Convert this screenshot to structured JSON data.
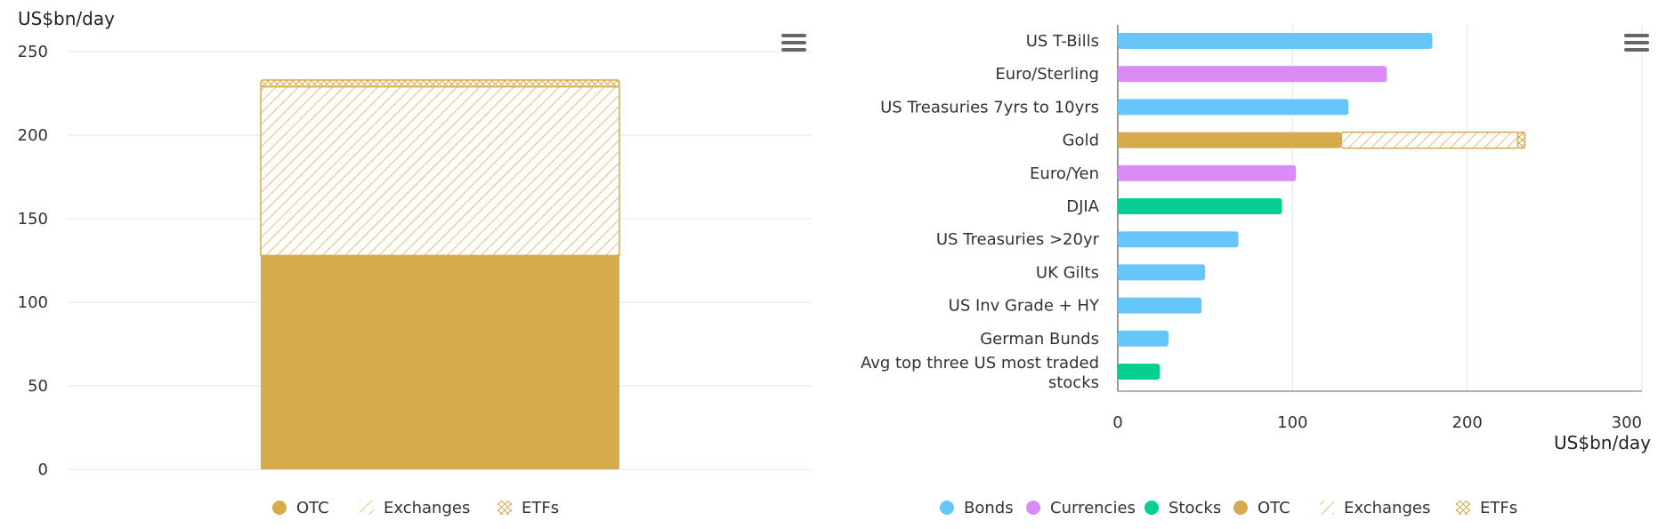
{
  "charts": [
    {
      "id": "left",
      "chart_data": {
        "type": "bar",
        "stacked": true,
        "orientation": "vertical",
        "categories": [
          ""
        ],
        "series": [
          {
            "name": "OTC",
            "values": [
              128
            ],
            "pattern": "solid"
          },
          {
            "name": "Exchanges",
            "values": [
              101
            ],
            "pattern": "hatch"
          },
          {
            "name": "ETFs",
            "values": [
              4
            ],
            "pattern": "crosshatch"
          }
        ],
        "ylabel": "US$bn/day",
        "ylim": [
          0,
          250
        ],
        "yticks": [
          0,
          50,
          100,
          150,
          200,
          250
        ],
        "grid": true,
        "legend": "bottom-center"
      },
      "legend": [
        {
          "label": "OTC",
          "swatch": "dot",
          "color": "#d6ab4d"
        },
        {
          "label": "Exchanges",
          "swatch": "hatch",
          "color": "#d6ab4d"
        },
        {
          "label": "ETFs",
          "swatch": "crosshatch",
          "color": "#d6ab4d"
        }
      ]
    },
    {
      "id": "right",
      "chart_data": {
        "type": "bar",
        "stacked": true,
        "orientation": "horizontal",
        "categories": [
          "US T-Bills",
          "Euro/Sterling",
          "US Treasuries 7yrs to 10yrs",
          "Gold",
          "Euro/Yen",
          "DJIA",
          "US Treasuries >20yr",
          "UK Gilts",
          "US Inv Grade + HY",
          "German Bunds",
          "Avg top three US most traded stocks"
        ],
        "series": [
          {
            "name": "Bonds",
            "values": [
              180,
              0,
              132,
              0,
              0,
              0,
              69,
              50,
              48,
              29,
              0
            ],
            "color": "#66c6fa"
          },
          {
            "name": "Currencies",
            "values": [
              0,
              154,
              0,
              0,
              102,
              0,
              0,
              0,
              0,
              0,
              0
            ],
            "color": "#d98bf6"
          },
          {
            "name": "Stocks",
            "values": [
              0,
              0,
              0,
              0,
              0,
              94,
              0,
              0,
              0,
              0,
              24
            ],
            "color": "#06cf93"
          },
          {
            "name": "OTC",
            "values": [
              0,
              0,
              0,
              128,
              0,
              0,
              0,
              0,
              0,
              0,
              0
            ],
            "color": "#d6ab4d"
          },
          {
            "name": "Exchanges",
            "values": [
              0,
              0,
              0,
              101,
              0,
              0,
              0,
              0,
              0,
              0,
              0
            ],
            "color": "#d6ab4d",
            "pattern": "hatch"
          },
          {
            "name": "ETFs",
            "values": [
              0,
              0,
              0,
              4,
              0,
              0,
              0,
              0,
              0,
              0,
              0
            ],
            "color": "#d6ab4d",
            "pattern": "crosshatch"
          }
        ],
        "xlabel": "US$bn/day",
        "xlim": [
          0,
          300
        ],
        "xticks": [
          0,
          100,
          200,
          300
        ],
        "grid": true,
        "legend": "bottom-center"
      },
      "legend": [
        {
          "label": "Bonds",
          "swatch": "dot",
          "color": "#66c6fa"
        },
        {
          "label": "Currencies",
          "swatch": "dot",
          "color": "#d98bf6"
        },
        {
          "label": "Stocks",
          "swatch": "dot",
          "color": "#06cf93"
        },
        {
          "label": "OTC",
          "swatch": "dot",
          "color": "#d6ab4d"
        },
        {
          "label": "Exchanges",
          "swatch": "hatch",
          "color": "#d6ab4d"
        },
        {
          "label": "ETFs",
          "swatch": "crosshatch",
          "color": "#d6ab4d"
        }
      ]
    }
  ],
  "colors": {
    "gold": "#d6ab4d",
    "grid": "#e6e6e6",
    "axis": "#333333",
    "menu": "#666666"
  },
  "icons": {
    "menu": "hamburger-menu-icon"
  }
}
